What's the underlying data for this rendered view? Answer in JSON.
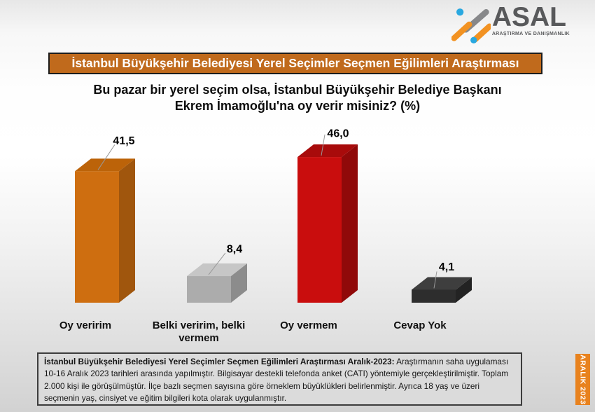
{
  "logo": {
    "name": "ASAL",
    "subtitle": "ARAŞTIRMA VE DANIŞMANLIK",
    "colors": {
      "wordmark": "#58595B",
      "orange": "#F29222",
      "blue": "#29A8E0",
      "gray": "#87888A"
    }
  },
  "banner": {
    "text": "İstanbul Büyükşehir Belediyesi Yerel Seçimler Seçmen Eğilimleri Araştırması",
    "bg": "#C06A1C"
  },
  "title": {
    "line1": "Bu pazar bir yerel seçim olsa, İstanbul Büyükşehir Belediye Başkanı",
    "line2": "Ekrem İmamoğlu'na oy verir misiniz? (%)"
  },
  "chart_data": {
    "type": "bar",
    "style": "3d",
    "title": "Bu pazar bir yerel seçim olsa, İstanbul Büyükşehir Belediye Başkanı Ekrem İmamoğlu'na oy verir misiniz? (%)",
    "categories": [
      "Oy veririm",
      "Belki veririm, belki vermem",
      "Oy vermem",
      "Cevap Yok"
    ],
    "values": [
      41.5,
      8.4,
      46.0,
      4.1
    ],
    "value_labels": [
      "41,5",
      "8,4",
      "46,0",
      "4,1"
    ],
    "bar_colors": [
      {
        "front": "#CE6E10",
        "top": "#BC6309",
        "side": "#A0560D"
      },
      {
        "front": "#ACACAC",
        "top": "#C6C6C6",
        "side": "#8C8C8C"
      },
      {
        "front": "#C90D0D",
        "top": "#A80B0B",
        "side": "#900909"
      },
      {
        "front": "#2D2D2D",
        "top": "#3E3E3E",
        "side": "#232323"
      }
    ],
    "leader_line_color": "#999999",
    "xlabel": "",
    "ylabel": "",
    "ylim": [
      0,
      50
    ],
    "grid": false,
    "legend": false
  },
  "footer": {
    "bold": "İstanbul Büyükşehir Belediyesi Yerel Seçimler Seçmen Eğilimleri Araştırması Aralık-2023:",
    "text": " Araştırmanın saha uygulaması 10-16 Aralık 2023 tarihleri arasında yapılmıştır. Bilgisayar destekli telefonda anket (CATI) yöntemiyle gerçekleştirilmiştir. Toplam 2.000 kişi ile görüşülmüştür. İlçe bazlı seçmen sayısına göre örneklem büyüklükleri belirlenmiştir. Ayrıca 18 yaş ve üzeri seçmenin yaş, cinsiyet ve eğitim bilgileri kota olarak uygulanmıştır."
  },
  "side_badge": {
    "text": "ARALIK 2023",
    "bg": "#E8821E"
  }
}
